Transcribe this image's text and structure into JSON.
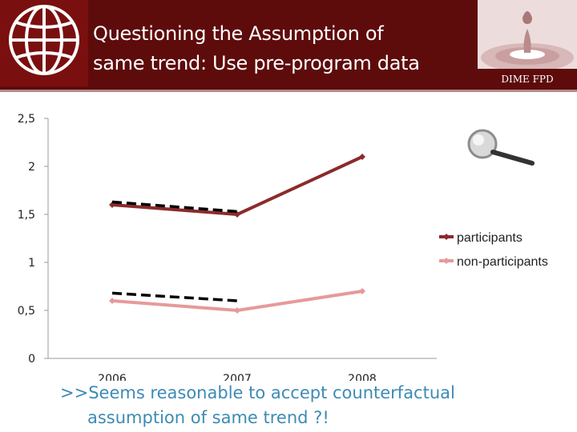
{
  "header": {
    "title_lines": [
      "Questioning the  Assumption of",
      "same trend: Use pre-program data"
    ],
    "brand": "DIME FPD",
    "logo_icon": "globe-logo-icon",
    "brand_icon": "water-drop-icon",
    "background_color": "#5e0b0b"
  },
  "decor": {
    "magnifier_icon": "magnifier-icon"
  },
  "chart_data": {
    "type": "line",
    "categories": [
      "2006",
      "2007",
      "2008"
    ],
    "y_ticks": [
      "0",
      "0,5",
      "1",
      "1,5",
      "2",
      "2,5"
    ],
    "ylim": [
      0,
      2.5
    ],
    "grid": false,
    "legend_position": "right",
    "series": [
      {
        "name": "participants",
        "values": [
          1.6,
          1.5,
          2.1
        ],
        "color": "#8b2b2b"
      },
      {
        "name": "non-participants",
        "values": [
          0.6,
          0.5,
          0.7
        ],
        "color": "#e59a9a"
      }
    ],
    "trend_lines": [
      {
        "x": [
          "2006",
          "2007"
        ],
        "values": [
          1.63,
          1.53
        ],
        "style": "dashed",
        "color": "#000000"
      },
      {
        "x": [
          "2006",
          "2007"
        ],
        "values": [
          0.68,
          0.6
        ],
        "style": "dashed",
        "color": "#000000"
      }
    ]
  },
  "caption_lines": [
    ">>Seems reasonable to accept counterfactual",
    "assumption of same trend ?!"
  ]
}
